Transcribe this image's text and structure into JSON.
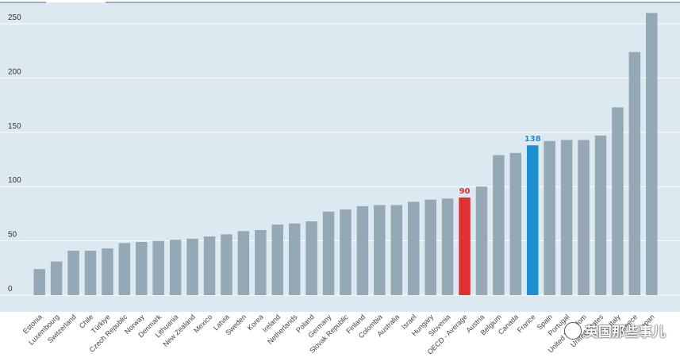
{
  "chart_data": {
    "type": "bar",
    "categories": [
      "Estonia",
      "Luxembourg",
      "Switzerland",
      "Chile",
      "Türkiye",
      "Czech Republic",
      "Norway",
      "Denmark",
      "Lithuania",
      "New Zealand",
      "Mexico",
      "Latvia",
      "Sweden",
      "Korea",
      "Ireland",
      "Netherlands",
      "Poland",
      "Germany",
      "Slovak Republic",
      "Finland",
      "Colombia",
      "Australia",
      "Israel",
      "Hungary",
      "Slovenia",
      "OECD - Average",
      "Austria",
      "Belgium",
      "Canada",
      "France",
      "Spain",
      "Portugal",
      "United Kingdom",
      "United States",
      "Italy",
      "Greece",
      "Japan"
    ],
    "values": [
      24,
      31,
      41,
      41,
      43,
      48,
      49,
      50,
      51,
      52,
      54,
      56,
      59,
      60,
      65,
      66,
      68,
      77,
      79,
      82,
      83,
      83,
      86,
      88,
      89,
      90,
      100,
      129,
      131,
      138,
      142,
      143,
      143,
      147,
      173,
      224,
      260
    ],
    "highlights": [
      {
        "category": "OECD - Average",
        "color": "#e03131",
        "label": "90"
      },
      {
        "category": "France",
        "color": "#1f8fd4",
        "label": "138"
      }
    ],
    "bar_color": "#94a8b5",
    "yticks": [
      0,
      50,
      100,
      150,
      200,
      250
    ],
    "ylim": [
      0,
      265
    ],
    "grid": true,
    "title": "",
    "xlabel": "",
    "ylabel": ""
  },
  "watermark": {
    "text": "英国那些事儿",
    "icon": "wechat-icon"
  }
}
